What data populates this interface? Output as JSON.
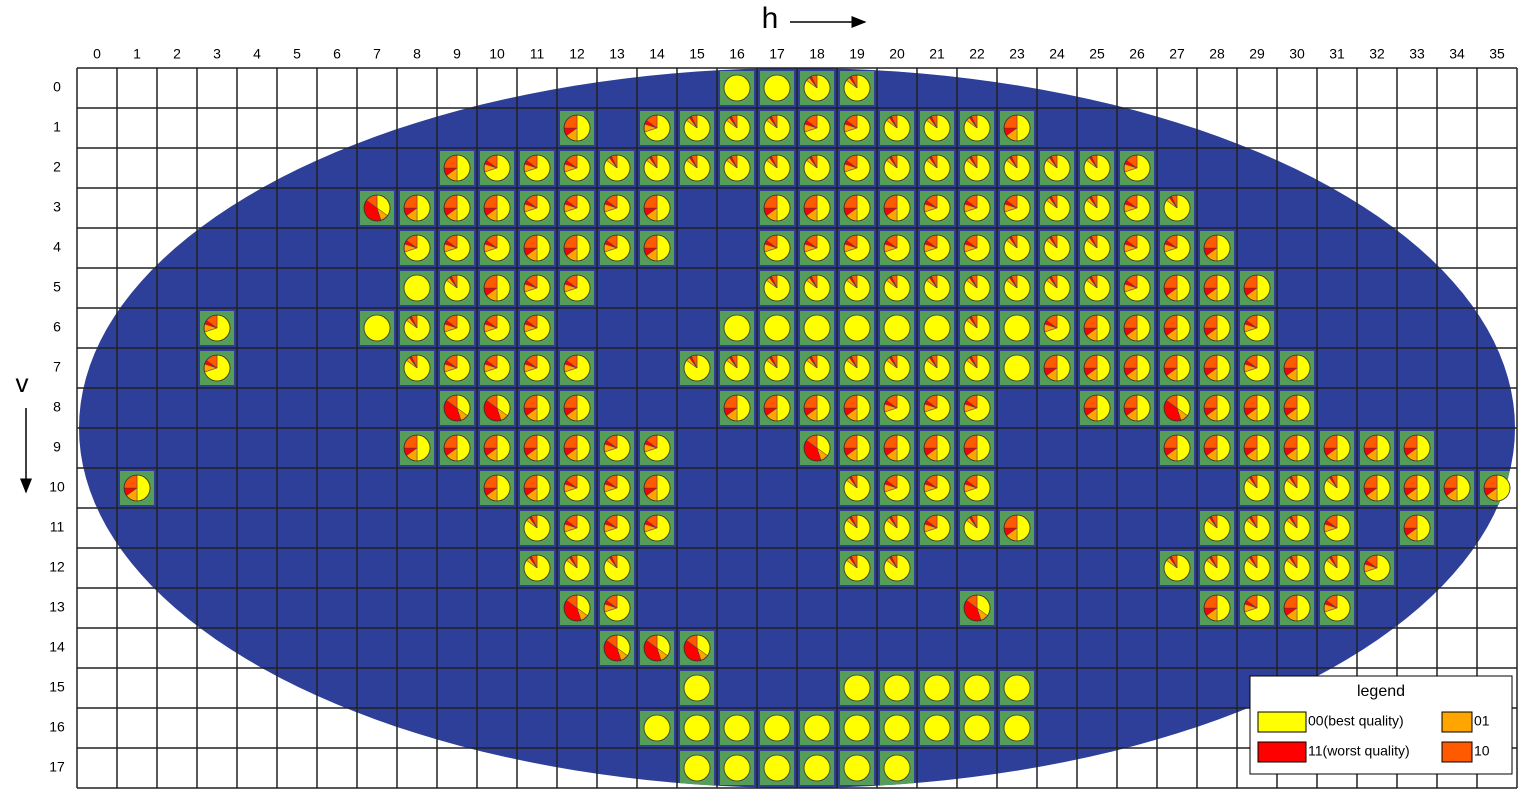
{
  "axis_labels": {
    "h": "h",
    "v": "v"
  },
  "columns": [
    0,
    1,
    2,
    3,
    4,
    5,
    6,
    7,
    8,
    9,
    10,
    11,
    12,
    13,
    14,
    15,
    16,
    17,
    18,
    19,
    20,
    21,
    22,
    23,
    24,
    25,
    26,
    27,
    28,
    29,
    30,
    31,
    32,
    33,
    34,
    35
  ],
  "rows": [
    0,
    1,
    2,
    3,
    4,
    5,
    6,
    7,
    8,
    9,
    10,
    11,
    12,
    13,
    14,
    15,
    16,
    17
  ],
  "legend": {
    "title": "legend",
    "items": [
      {
        "label": "00(best quality)",
        "color": "#ffff00"
      },
      {
        "label": "01",
        "color": "#ffa500"
      },
      {
        "label": "11(worst quality)",
        "color": "#ff0000"
      },
      {
        "label": "10",
        "color": "#ff5a00"
      }
    ]
  },
  "tiles": [
    [
      16,
      0,
      100,
      0,
      0,
      0
    ],
    [
      17,
      0,
      100,
      0,
      0,
      0
    ],
    [
      18,
      0,
      85,
      5,
      3,
      7
    ],
    [
      19,
      0,
      85,
      5,
      3,
      7
    ],
    [
      12,
      1,
      50,
      15,
      10,
      25
    ],
    [
      14,
      1,
      70,
      10,
      5,
      15
    ],
    [
      15,
      1,
      85,
      5,
      3,
      7
    ],
    [
      16,
      1,
      85,
      5,
      3,
      7
    ],
    [
      17,
      1,
      85,
      5,
      3,
      7
    ],
    [
      18,
      1,
      70,
      10,
      5,
      15
    ],
    [
      19,
      1,
      70,
      10,
      5,
      15
    ],
    [
      20,
      1,
      85,
      5,
      3,
      7
    ],
    [
      21,
      1,
      85,
      5,
      3,
      7
    ],
    [
      22,
      1,
      85,
      5,
      3,
      7
    ],
    [
      23,
      1,
      50,
      15,
      10,
      25
    ],
    [
      9,
      2,
      50,
      15,
      10,
      25
    ],
    [
      10,
      2,
      70,
      10,
      5,
      15
    ],
    [
      11,
      2,
      70,
      10,
      5,
      15
    ],
    [
      12,
      2,
      70,
      10,
      5,
      15
    ],
    [
      13,
      2,
      85,
      5,
      3,
      7
    ],
    [
      14,
      2,
      85,
      5,
      3,
      7
    ],
    [
      15,
      2,
      85,
      5,
      3,
      7
    ],
    [
      16,
      2,
      85,
      5,
      3,
      7
    ],
    [
      17,
      2,
      85,
      5,
      3,
      7
    ],
    [
      18,
      2,
      85,
      5,
      3,
      7
    ],
    [
      19,
      2,
      70,
      10,
      5,
      15
    ],
    [
      20,
      2,
      85,
      5,
      3,
      7
    ],
    [
      21,
      2,
      85,
      5,
      3,
      7
    ],
    [
      22,
      2,
      85,
      5,
      3,
      7
    ],
    [
      23,
      2,
      85,
      5,
      3,
      7
    ],
    [
      24,
      2,
      85,
      5,
      3,
      7
    ],
    [
      25,
      2,
      85,
      5,
      3,
      7
    ],
    [
      26,
      2,
      70,
      10,
      5,
      15
    ],
    [
      7,
      3,
      35,
      10,
      40,
      15
    ],
    [
      8,
      3,
      50,
      15,
      10,
      25
    ],
    [
      9,
      3,
      50,
      15,
      10,
      25
    ],
    [
      10,
      3,
      50,
      15,
      10,
      25
    ],
    [
      11,
      3,
      70,
      10,
      5,
      15
    ],
    [
      12,
      3,
      70,
      10,
      5,
      15
    ],
    [
      13,
      3,
      70,
      10,
      5,
      15
    ],
    [
      14,
      3,
      50,
      15,
      10,
      25
    ],
    [
      17,
      3,
      50,
      15,
      10,
      25
    ],
    [
      18,
      3,
      50,
      15,
      10,
      25
    ],
    [
      19,
      3,
      50,
      15,
      10,
      25
    ],
    [
      20,
      3,
      50,
      15,
      10,
      25
    ],
    [
      21,
      3,
      70,
      10,
      5,
      15
    ],
    [
      22,
      3,
      70,
      10,
      5,
      15
    ],
    [
      23,
      3,
      70,
      10,
      5,
      15
    ],
    [
      24,
      3,
      85,
      5,
      3,
      7
    ],
    [
      25,
      3,
      85,
      5,
      3,
      7
    ],
    [
      26,
      3,
      70,
      10,
      5,
      15
    ],
    [
      27,
      3,
      85,
      5,
      3,
      7
    ],
    [
      8,
      4,
      70,
      10,
      5,
      15
    ],
    [
      9,
      4,
      70,
      10,
      5,
      15
    ],
    [
      10,
      4,
      70,
      10,
      5,
      15
    ],
    [
      11,
      4,
      50,
      15,
      10,
      25
    ],
    [
      12,
      4,
      50,
      15,
      10,
      25
    ],
    [
      13,
      4,
      70,
      10,
      5,
      15
    ],
    [
      14,
      4,
      50,
      15,
      10,
      25
    ],
    [
      17,
      4,
      70,
      10,
      5,
      15
    ],
    [
      18,
      4,
      70,
      10,
      5,
      15
    ],
    [
      19,
      4,
      70,
      10,
      5,
      15
    ],
    [
      20,
      4,
      70,
      10,
      5,
      15
    ],
    [
      21,
      4,
      70,
      10,
      5,
      15
    ],
    [
      22,
      4,
      70,
      10,
      5,
      15
    ],
    [
      23,
      4,
      85,
      5,
      3,
      7
    ],
    [
      24,
      4,
      85,
      5,
      3,
      7
    ],
    [
      25,
      4,
      85,
      5,
      3,
      7
    ],
    [
      26,
      4,
      70,
      10,
      5,
      15
    ],
    [
      27,
      4,
      70,
      10,
      5,
      15
    ],
    [
      28,
      4,
      50,
      15,
      10,
      25
    ],
    [
      8,
      5,
      100,
      0,
      0,
      0
    ],
    [
      9,
      5,
      85,
      5,
      3,
      7
    ],
    [
      10,
      5,
      50,
      15,
      10,
      25
    ],
    [
      11,
      5,
      70,
      10,
      5,
      15
    ],
    [
      12,
      5,
      70,
      10,
      5,
      15
    ],
    [
      17,
      5,
      85,
      5,
      3,
      7
    ],
    [
      18,
      5,
      85,
      5,
      3,
      7
    ],
    [
      19,
      5,
      85,
      5,
      3,
      7
    ],
    [
      20,
      5,
      85,
      5,
      3,
      7
    ],
    [
      21,
      5,
      85,
      5,
      3,
      7
    ],
    [
      22,
      5,
      85,
      5,
      3,
      7
    ],
    [
      23,
      5,
      85,
      5,
      3,
      7
    ],
    [
      24,
      5,
      85,
      5,
      3,
      7
    ],
    [
      25,
      5,
      85,
      5,
      3,
      7
    ],
    [
      26,
      5,
      70,
      10,
      5,
      15
    ],
    [
      27,
      5,
      50,
      15,
      10,
      25
    ],
    [
      28,
      5,
      50,
      15,
      10,
      25
    ],
    [
      29,
      5,
      50,
      15,
      10,
      25
    ],
    [
      3,
      6,
      70,
      10,
      5,
      15
    ],
    [
      7,
      6,
      100,
      0,
      0,
      0
    ],
    [
      8,
      6,
      85,
      5,
      3,
      7
    ],
    [
      9,
      6,
      70,
      10,
      5,
      15
    ],
    [
      10,
      6,
      70,
      10,
      5,
      15
    ],
    [
      11,
      6,
      70,
      10,
      5,
      15
    ],
    [
      16,
      6,
      100,
      0,
      0,
      0
    ],
    [
      17,
      6,
      100,
      0,
      0,
      0
    ],
    [
      18,
      6,
      100,
      0,
      0,
      0
    ],
    [
      19,
      6,
      100,
      0,
      0,
      0
    ],
    [
      20,
      6,
      100,
      0,
      0,
      0
    ],
    [
      21,
      6,
      100,
      0,
      0,
      0
    ],
    [
      22,
      6,
      85,
      5,
      3,
      7
    ],
    [
      23,
      6,
      100,
      0,
      0,
      0
    ],
    [
      24,
      6,
      70,
      10,
      5,
      15
    ],
    [
      25,
      6,
      50,
      15,
      10,
      25
    ],
    [
      26,
      6,
      50,
      15,
      10,
      25
    ],
    [
      27,
      6,
      50,
      15,
      10,
      25
    ],
    [
      28,
      6,
      50,
      15,
      10,
      25
    ],
    [
      29,
      6,
      70,
      10,
      5,
      15
    ],
    [
      3,
      7,
      70,
      10,
      5,
      15
    ],
    [
      8,
      7,
      85,
      5,
      3,
      7
    ],
    [
      9,
      7,
      70,
      10,
      5,
      15
    ],
    [
      10,
      7,
      70,
      10,
      5,
      15
    ],
    [
      11,
      7,
      70,
      10,
      5,
      15
    ],
    [
      12,
      7,
      70,
      10,
      5,
      15
    ],
    [
      15,
      7,
      85,
      5,
      3,
      7
    ],
    [
      16,
      7,
      85,
      5,
      3,
      7
    ],
    [
      17,
      7,
      85,
      5,
      3,
      7
    ],
    [
      18,
      7,
      85,
      5,
      3,
      7
    ],
    [
      19,
      7,
      85,
      5,
      3,
      7
    ],
    [
      20,
      7,
      85,
      5,
      3,
      7
    ],
    [
      21,
      7,
      85,
      5,
      3,
      7
    ],
    [
      22,
      7,
      85,
      5,
      3,
      7
    ],
    [
      23,
      7,
      100,
      0,
      0,
      0
    ],
    [
      24,
      7,
      50,
      15,
      10,
      25
    ],
    [
      25,
      7,
      50,
      15,
      10,
      25
    ],
    [
      26,
      7,
      50,
      15,
      10,
      25
    ],
    [
      27,
      7,
      50,
      15,
      10,
      25
    ],
    [
      28,
      7,
      50,
      15,
      10,
      25
    ],
    [
      29,
      7,
      70,
      10,
      5,
      15
    ],
    [
      30,
      7,
      50,
      15,
      10,
      25
    ],
    [
      9,
      8,
      35,
      10,
      40,
      15
    ],
    [
      10,
      8,
      35,
      10,
      40,
      15
    ],
    [
      11,
      8,
      50,
      15,
      10,
      25
    ],
    [
      12,
      8,
      50,
      15,
      10,
      25
    ],
    [
      16,
      8,
      50,
      15,
      10,
      25
    ],
    [
      17,
      8,
      50,
      15,
      10,
      25
    ],
    [
      18,
      8,
      50,
      15,
      10,
      25
    ],
    [
      19,
      8,
      50,
      15,
      10,
      25
    ],
    [
      20,
      8,
      70,
      10,
      5,
      15
    ],
    [
      21,
      8,
      70,
      10,
      5,
      15
    ],
    [
      22,
      8,
      70,
      10,
      5,
      15
    ],
    [
      25,
      8,
      50,
      15,
      10,
      25
    ],
    [
      26,
      8,
      50,
      15,
      10,
      25
    ],
    [
      27,
      8,
      35,
      10,
      40,
      15
    ],
    [
      28,
      8,
      50,
      15,
      10,
      25
    ],
    [
      29,
      8,
      50,
      15,
      10,
      25
    ],
    [
      30,
      8,
      50,
      15,
      10,
      25
    ],
    [
      8,
      9,
      50,
      15,
      10,
      25
    ],
    [
      9,
      9,
      50,
      15,
      10,
      25
    ],
    [
      10,
      9,
      50,
      15,
      10,
      25
    ],
    [
      11,
      9,
      50,
      15,
      10,
      25
    ],
    [
      12,
      9,
      50,
      15,
      10,
      25
    ],
    [
      13,
      9,
      70,
      10,
      5,
      15
    ],
    [
      14,
      9,
      70,
      10,
      5,
      15
    ],
    [
      18,
      9,
      35,
      10,
      40,
      15
    ],
    [
      19,
      9,
      50,
      15,
      10,
      25
    ],
    [
      20,
      9,
      50,
      15,
      10,
      25
    ],
    [
      21,
      9,
      50,
      15,
      10,
      25
    ],
    [
      22,
      9,
      50,
      15,
      10,
      25
    ],
    [
      27,
      9,
      50,
      15,
      10,
      25
    ],
    [
      28,
      9,
      50,
      15,
      10,
      25
    ],
    [
      29,
      9,
      50,
      15,
      10,
      25
    ],
    [
      30,
      9,
      50,
      15,
      10,
      25
    ],
    [
      31,
      9,
      50,
      15,
      10,
      25
    ],
    [
      32,
      9,
      50,
      15,
      10,
      25
    ],
    [
      33,
      9,
      50,
      15,
      10,
      25
    ],
    [
      1,
      10,
      50,
      15,
      10,
      25
    ],
    [
      10,
      10,
      50,
      15,
      10,
      25
    ],
    [
      11,
      10,
      50,
      15,
      10,
      25
    ],
    [
      12,
      10,
      70,
      10,
      5,
      15
    ],
    [
      13,
      10,
      70,
      10,
      5,
      15
    ],
    [
      14,
      10,
      50,
      15,
      10,
      25
    ],
    [
      19,
      10,
      85,
      5,
      3,
      7
    ],
    [
      20,
      10,
      70,
      10,
      5,
      15
    ],
    [
      21,
      10,
      70,
      10,
      5,
      15
    ],
    [
      22,
      10,
      70,
      10,
      5,
      15
    ],
    [
      29,
      10,
      85,
      5,
      3,
      7
    ],
    [
      30,
      10,
      85,
      5,
      3,
      7
    ],
    [
      31,
      10,
      85,
      5,
      3,
      7
    ],
    [
      32,
      10,
      50,
      15,
      10,
      25
    ],
    [
      33,
      10,
      50,
      15,
      10,
      25
    ],
    [
      34,
      10,
      50,
      15,
      10,
      25
    ],
    [
      35,
      10,
      50,
      15,
      10,
      25
    ],
    [
      11,
      11,
      85,
      5,
      3,
      7
    ],
    [
      12,
      11,
      70,
      10,
      5,
      15
    ],
    [
      13,
      11,
      70,
      10,
      5,
      15
    ],
    [
      14,
      11,
      70,
      10,
      5,
      15
    ],
    [
      19,
      11,
      85,
      5,
      3,
      7
    ],
    [
      20,
      11,
      85,
      5,
      3,
      7
    ],
    [
      21,
      11,
      70,
      10,
      5,
      15
    ],
    [
      22,
      11,
      85,
      5,
      3,
      7
    ],
    [
      23,
      11,
      50,
      15,
      10,
      25
    ],
    [
      28,
      11,
      85,
      5,
      3,
      7
    ],
    [
      29,
      11,
      85,
      5,
      3,
      7
    ],
    [
      30,
      11,
      85,
      5,
      3,
      7
    ],
    [
      31,
      11,
      70,
      10,
      5,
      15
    ],
    [
      33,
      11,
      50,
      15,
      10,
      25
    ],
    [
      11,
      12,
      85,
      5,
      3,
      7
    ],
    [
      12,
      12,
      85,
      5,
      3,
      7
    ],
    [
      13,
      12,
      85,
      5,
      3,
      7
    ],
    [
      19,
      12,
      85,
      5,
      3,
      7
    ],
    [
      20,
      12,
      85,
      5,
      3,
      7
    ],
    [
      27,
      12,
      85,
      5,
      3,
      7
    ],
    [
      28,
      12,
      85,
      5,
      3,
      7
    ],
    [
      29,
      12,
      85,
      5,
      3,
      7
    ],
    [
      30,
      12,
      85,
      5,
      3,
      7
    ],
    [
      31,
      12,
      85,
      5,
      3,
      7
    ],
    [
      32,
      12,
      70,
      10,
      5,
      15
    ],
    [
      12,
      13,
      35,
      10,
      40,
      15
    ],
    [
      13,
      13,
      70,
      10,
      5,
      15
    ],
    [
      22,
      13,
      35,
      10,
      40,
      15
    ],
    [
      28,
      13,
      50,
      15,
      10,
      25
    ],
    [
      29,
      13,
      70,
      10,
      5,
      15
    ],
    [
      30,
      13,
      50,
      15,
      10,
      25
    ],
    [
      31,
      13,
      70,
      10,
      5,
      15
    ],
    [
      13,
      14,
      35,
      10,
      40,
      15
    ],
    [
      14,
      14,
      35,
      10,
      40,
      15
    ],
    [
      15,
      14,
      35,
      10,
      40,
      15
    ],
    [
      15,
      15,
      100,
      0,
      0,
      0
    ],
    [
      19,
      15,
      100,
      0,
      0,
      0
    ],
    [
      20,
      15,
      100,
      0,
      0,
      0
    ],
    [
      21,
      15,
      100,
      0,
      0,
      0
    ],
    [
      22,
      15,
      100,
      0,
      0,
      0
    ],
    [
      23,
      15,
      100,
      0,
      0,
      0
    ],
    [
      14,
      16,
      100,
      0,
      0,
      0
    ],
    [
      15,
      16,
      100,
      0,
      0,
      0
    ],
    [
      16,
      16,
      100,
      0,
      0,
      0
    ],
    [
      17,
      16,
      100,
      0,
      0,
      0
    ],
    [
      18,
      16,
      100,
      0,
      0,
      0
    ],
    [
      19,
      16,
      100,
      0,
      0,
      0
    ],
    [
      20,
      16,
      100,
      0,
      0,
      0
    ],
    [
      21,
      16,
      100,
      0,
      0,
      0
    ],
    [
      22,
      16,
      100,
      0,
      0,
      0
    ],
    [
      23,
      16,
      100,
      0,
      0,
      0
    ],
    [
      15,
      17,
      100,
      0,
      0,
      0
    ],
    [
      16,
      17,
      100,
      0,
      0,
      0
    ],
    [
      17,
      17,
      100,
      0,
      0,
      0
    ],
    [
      18,
      17,
      100,
      0,
      0,
      0
    ],
    [
      19,
      17,
      100,
      0,
      0,
      0
    ],
    [
      20,
      17,
      100,
      0,
      0,
      0
    ]
  ]
}
